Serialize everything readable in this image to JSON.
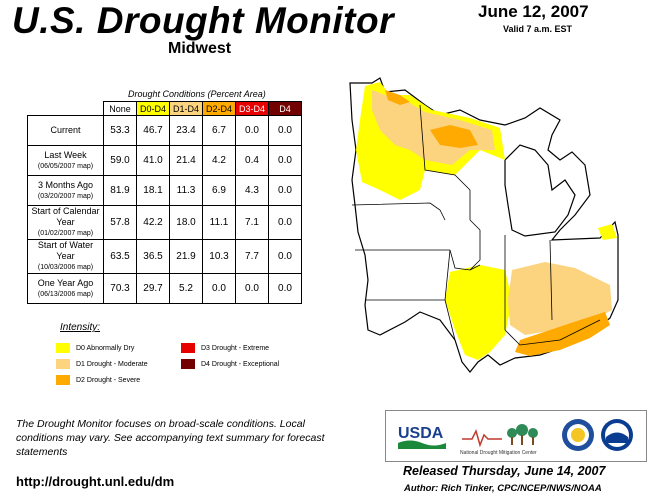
{
  "header": {
    "title": "U.S. Drought Monitor",
    "region": "Midwest",
    "date": "June 12, 2007",
    "valid": "Valid 7 a.m. EST"
  },
  "table": {
    "caption": "Drought Conditions (Percent Area)",
    "columns": [
      "None",
      "D0-D4",
      "D1-D4",
      "D2-D4",
      "D3-D4",
      "D4"
    ],
    "column_colors": [
      "#ffffff",
      "#ffff00",
      "#fcd37f",
      "#ffaa00",
      "#e60000",
      "#730000"
    ],
    "rows": [
      {
        "label": "Current",
        "sub": "",
        "values": [
          "53.3",
          "46.7",
          "23.4",
          "6.7",
          "0.0",
          "0.0"
        ]
      },
      {
        "label": "Last Week",
        "sub": "(06/05/2007 map)",
        "values": [
          "59.0",
          "41.0",
          "21.4",
          "4.2",
          "0.4",
          "0.0"
        ]
      },
      {
        "label": "3 Months Ago",
        "sub": "(03/20/2007 map)",
        "values": [
          "81.9",
          "18.1",
          "11.3",
          "6.9",
          "4.3",
          "0.0"
        ]
      },
      {
        "label": "Start of Calendar Year",
        "sub": "(01/02/2007 map)",
        "values": [
          "57.8",
          "42.2",
          "18.0",
          "11.1",
          "7.1",
          "0.0"
        ]
      },
      {
        "label": "Start of Water Year",
        "sub": "(10/03/2006 map)",
        "values": [
          "63.5",
          "36.5",
          "21.9",
          "10.3",
          "7.7",
          "0.0"
        ]
      },
      {
        "label": "One Year Ago",
        "sub": "(06/13/2006 map)",
        "values": [
          "70.3",
          "29.7",
          "5.2",
          "0.0",
          "0.0",
          "0.0"
        ]
      }
    ]
  },
  "legend": {
    "title": "Intensity:",
    "items": [
      {
        "label": "D0 Abnormally Dry",
        "color": "#ffff00"
      },
      {
        "label": "D1 Drought - Moderate",
        "color": "#fcd37f"
      },
      {
        "label": "D2 Drought - Severe",
        "color": "#ffaa00"
      },
      {
        "label": "D3 Drought - Extreme",
        "color": "#e60000"
      },
      {
        "label": "D4 Drought - Exceptional",
        "color": "#730000"
      }
    ]
  },
  "note": "The Drought Monitor focuses on broad-scale conditions. Local conditions may vary. See accompanying text summary for forecast statements",
  "url": "http://drought.unl.edu/dm",
  "logos": {
    "usda": "USDA",
    "ndmc": "National Drought Mitigation Center"
  },
  "footer": {
    "released": "Released Thursday, June 14, 2007",
    "author": "Author: Rich Tinker, CPC/NCEP/NWS/NOAA"
  }
}
